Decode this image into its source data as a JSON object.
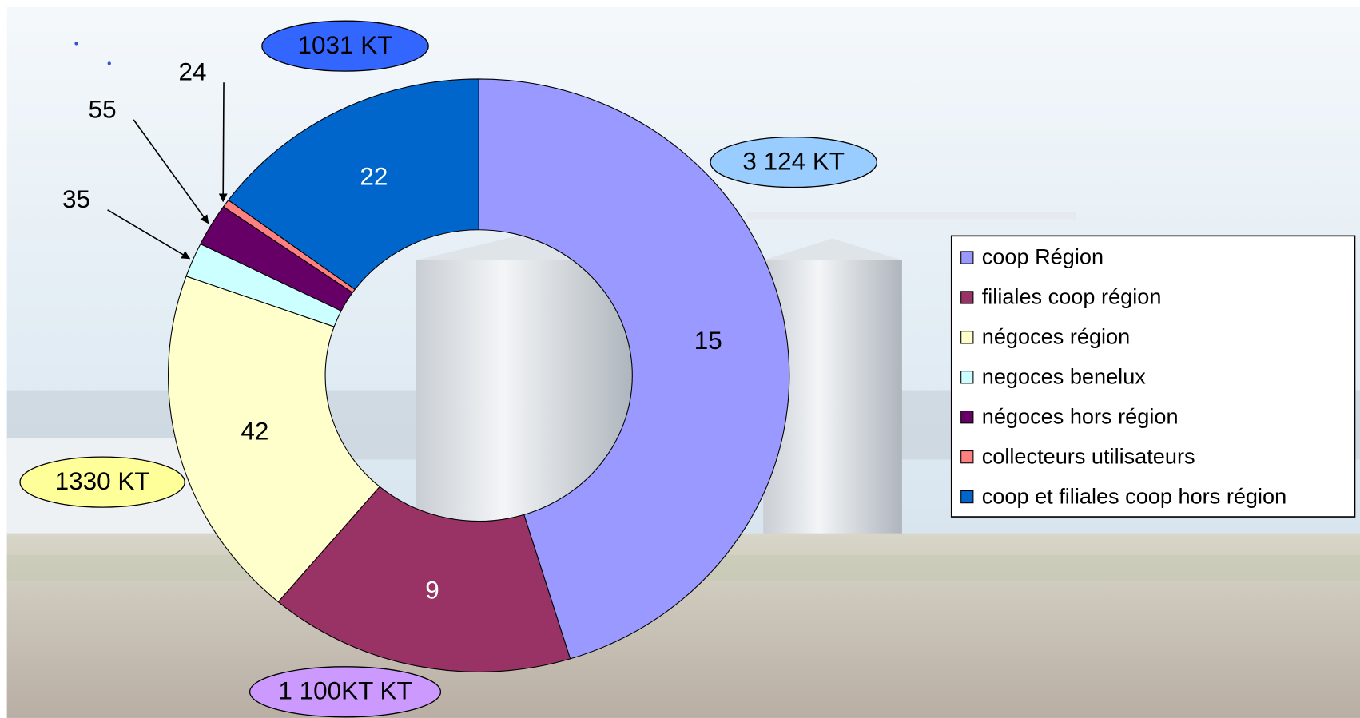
{
  "chart_data": {
    "type": "donut",
    "categories": [
      "coop Région",
      "filiales coop région",
      "négoces région",
      "negoces benelux",
      "négoces hors région",
      "collecteurs utilisateurs",
      "coop et filiales coop hors région"
    ],
    "values": [
      3124,
      1100,
      1330,
      130,
      160,
      30,
      1031
    ],
    "value_labels": [
      "3 124 KT",
      "1 100KT KT",
      "1330 KT",
      null,
      null,
      null,
      "1031 KT"
    ],
    "value_label_colors": [
      "#99ccff",
      "#cc99ff",
      "#ffff99",
      null,
      null,
      null,
      "#3366ff"
    ],
    "counts": [
      15,
      9,
      42,
      35,
      55,
      24,
      22
    ],
    "colors": [
      "#9999ff",
      "#993366",
      "#ffffcc",
      "#ccffff",
      "#660066",
      "#ff8080",
      "#0066cc"
    ],
    "legend": "right"
  }
}
